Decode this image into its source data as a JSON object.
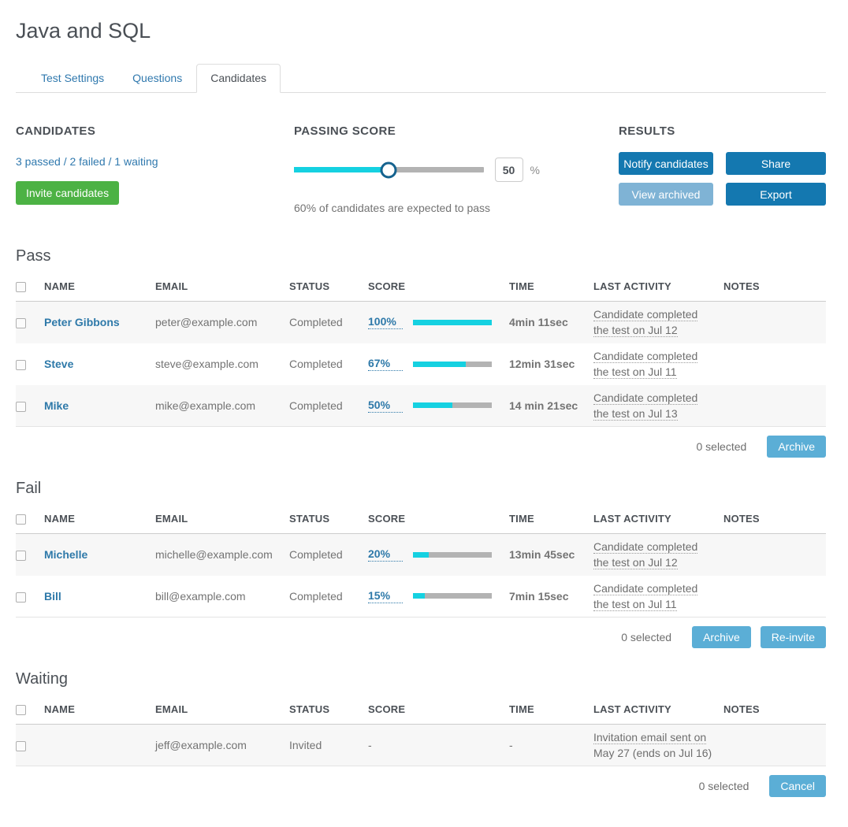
{
  "page": {
    "title": "Java and SQL"
  },
  "tabs": [
    {
      "label": "Test Settings",
      "active": false
    },
    {
      "label": "Questions",
      "active": false
    },
    {
      "label": "Candidates",
      "active": true
    }
  ],
  "candidates_panel": {
    "heading": "CANDIDATES",
    "stats_link": "3 passed / 2 failed / 1 waiting",
    "invite_button": "Invite candidates"
  },
  "passing_score_panel": {
    "heading": "PASSING SCORE",
    "value": "50",
    "unit": "%",
    "slider_percent": 50,
    "note": "60% of candidates are expected to pass"
  },
  "results_panel": {
    "heading": "RESULTS",
    "notify_button": "Notify candidates",
    "share_button": "Share",
    "view_archived_button": "View archived",
    "export_button": "Export"
  },
  "table_headers": {
    "name": "NAME",
    "email": "EMAIL",
    "status": "STATUS",
    "score": "SCORE",
    "time": "TIME",
    "last_activity": "LAST ACTIVITY",
    "notes": "NOTES"
  },
  "sections": [
    {
      "title": "Pass",
      "rows": [
        {
          "name": "Peter Gibbons",
          "email": "peter@example.com",
          "status": "Completed",
          "score": "100%",
          "score_percent": 100,
          "time": "4min 11sec",
          "activity_line1": "Candidate completed",
          "activity_line2": "the test on Jul 12",
          "notes": ""
        },
        {
          "name": "Steve",
          "email": "steve@example.com",
          "status": "Completed",
          "score": "67%",
          "score_percent": 67,
          "time": "12min 31sec",
          "activity_line1": "Candidate completed",
          "activity_line2": "the test on Jul 11",
          "notes": ""
        },
        {
          "name": "Mike",
          "email": "mike@example.com",
          "status": "Completed",
          "score": "50%",
          "score_percent": 50,
          "time": "14 min 21sec",
          "activity_line1": "Candidate completed",
          "activity_line2": "the test on Jul 13",
          "notes": ""
        }
      ],
      "footer": {
        "selected": "0 selected",
        "archive_button": "Archive"
      }
    },
    {
      "title": "Fail",
      "rows": [
        {
          "name": "Michelle",
          "email": "michelle@example.com",
          "status": "Completed",
          "score": "20%",
          "score_percent": 20,
          "time": "13min 45sec",
          "activity_line1": "Candidate completed",
          "activity_line2": "the test on Jul 12",
          "notes": ""
        },
        {
          "name": "Bill",
          "email": "bill@example.com",
          "status": "Completed",
          "score": "15%",
          "score_percent": 15,
          "time": "7min 15sec",
          "activity_line1": "Candidate completed",
          "activity_line2": "the test on Jul 11",
          "notes": ""
        }
      ],
      "footer": {
        "selected": "0 selected",
        "archive_button": "Archive",
        "reinvite_button": "Re-invite"
      }
    },
    {
      "title": "Waiting",
      "rows": [
        {
          "name": "",
          "email": "jeff@example.com",
          "status": "Invited",
          "score": "-",
          "time": "-",
          "activity_line1": "Invitation email sent on",
          "activity_line2": "May 27 (ends on Jul 16)",
          "notes": ""
        }
      ],
      "footer": {
        "selected": "0 selected",
        "cancel_button": "Cancel"
      }
    }
  ],
  "colors": {
    "accent_cyan": "#15d1e1",
    "link_blue": "#2e79a9",
    "button_blue": "#1478b0",
    "button_light_blue": "#5baed6",
    "button_pale_blue": "#7fb3d5",
    "button_green": "#4cb244",
    "bar_gray": "#b3b3b3"
  }
}
